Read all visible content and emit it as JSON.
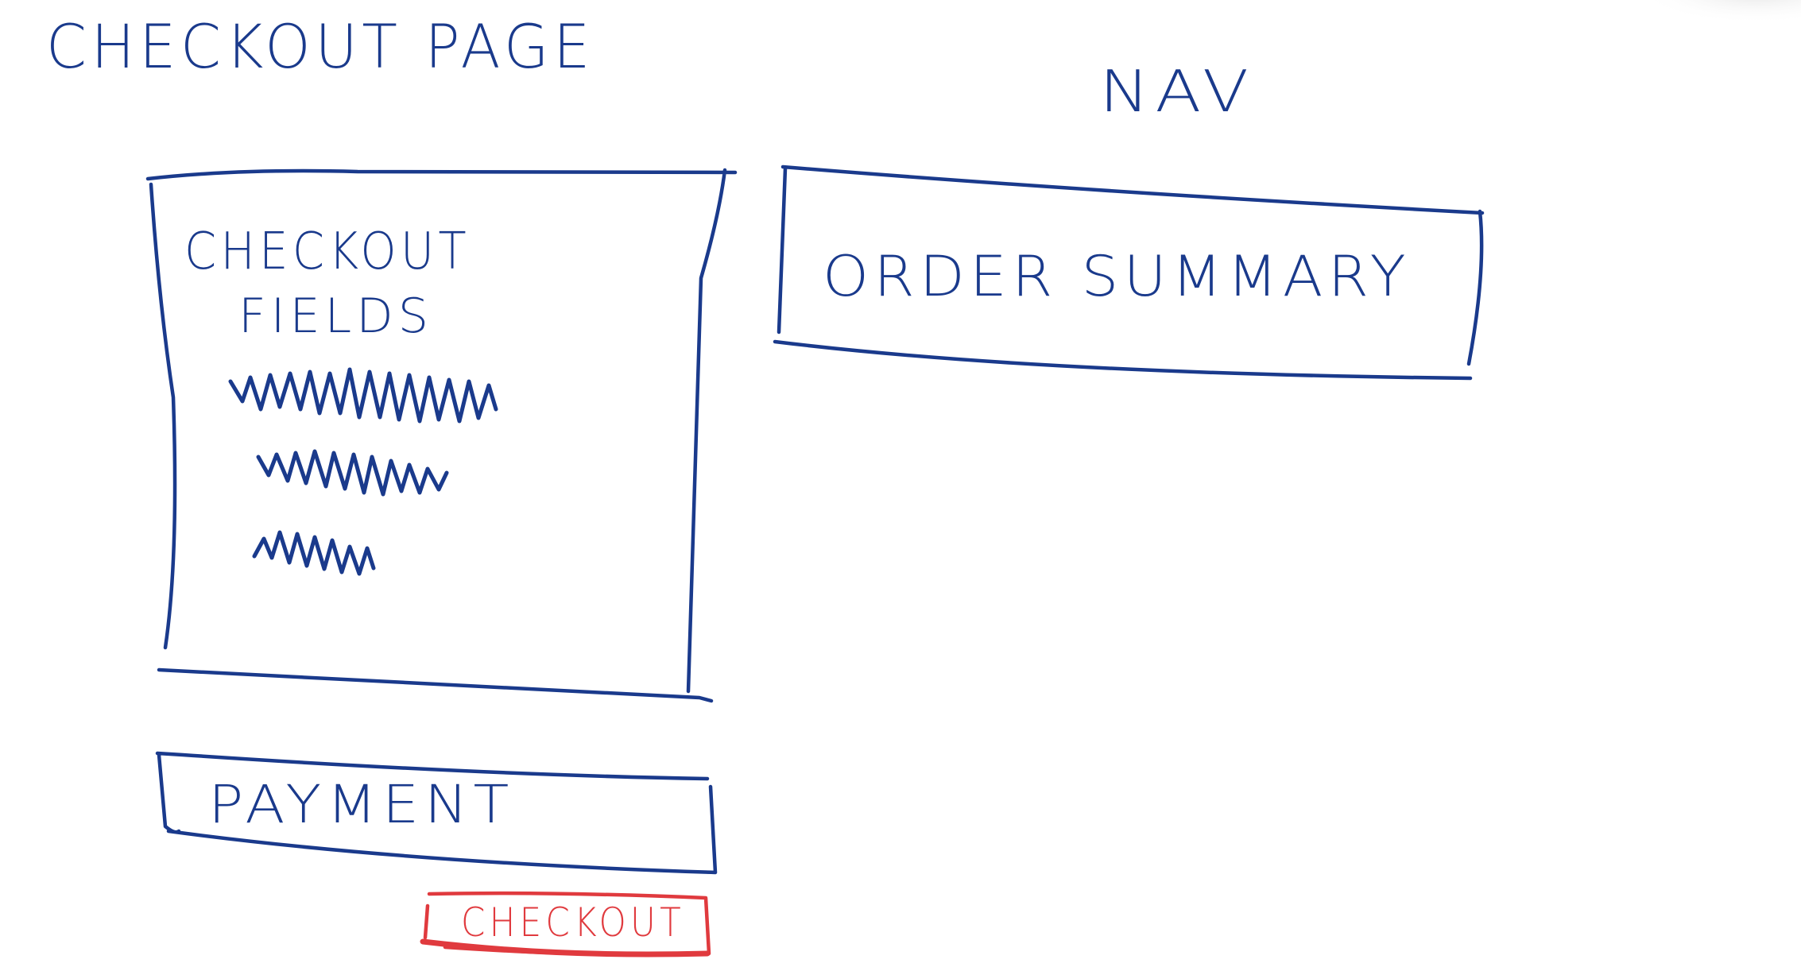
{
  "colors": {
    "ink": "#1a3a8c",
    "accent": "#e03a3e",
    "background": "#ffffff"
  },
  "labels": {
    "page_title": "CHECKOUT PAGE",
    "nav": "NAV",
    "checkout_fields_line1": "CHECKOUT",
    "checkout_fields_line2": "FIELDS",
    "order_summary": "ORDER SUMMARY",
    "payment": "PAYMENT",
    "checkout_button": "CHECKOUT"
  }
}
